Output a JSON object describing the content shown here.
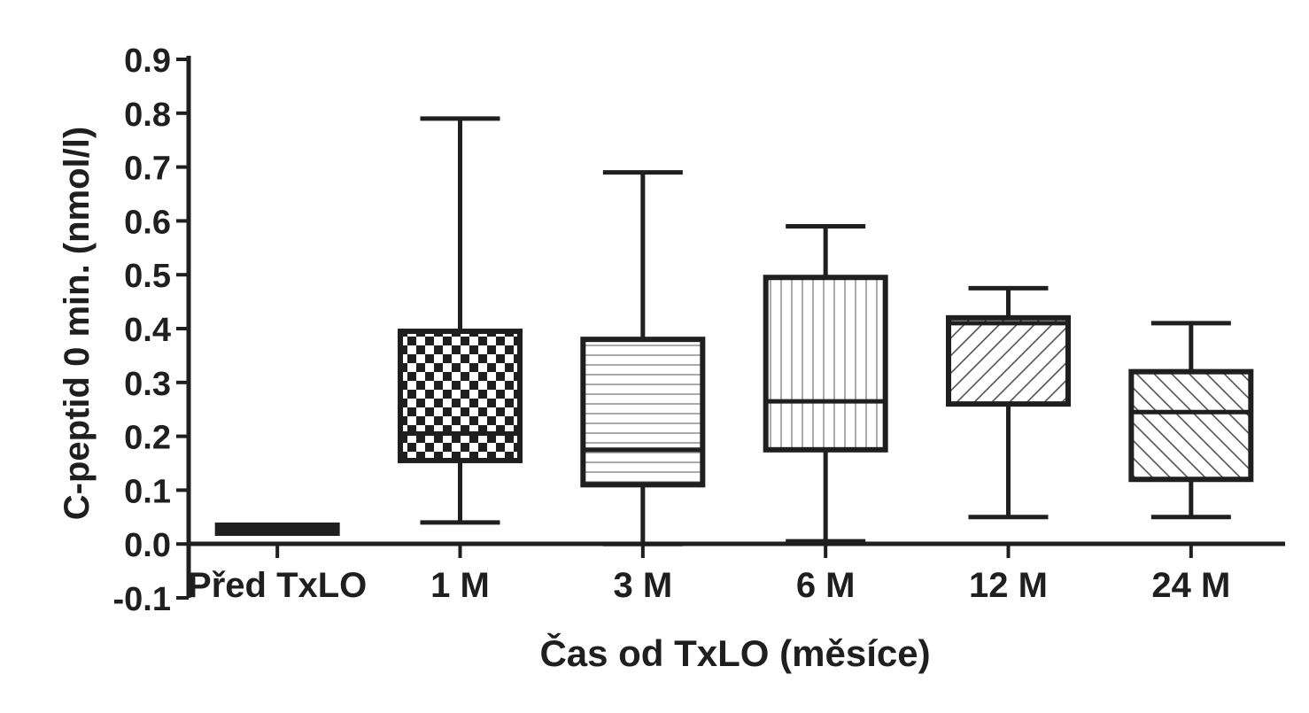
{
  "chart_data": {
    "type": "box",
    "title": "",
    "xlabel": "Čas od TxLO (měsíce)",
    "ylabel": "C-peptid 0 min. (nmol/l)",
    "ylim": [
      -0.1,
      0.9
    ],
    "yticks": [
      0.9,
      0.8,
      0.7,
      0.6,
      0.5,
      0.4,
      0.3,
      0.2,
      0.1,
      0.0,
      -0.1
    ],
    "ytick_labels": [
      "0.9",
      "0.8",
      "0.7",
      "0.6",
      "0.5",
      "0.4",
      "0.3",
      "0.2",
      "0.1",
      "0.0",
      "-0.1"
    ],
    "grid": false,
    "legend": "none",
    "categories": [
      "Před TxLO",
      "1 M",
      "3 M",
      "6 M",
      "12 M",
      "24 M"
    ],
    "boxes": [
      {
        "min": 0.02,
        "q1": 0.02,
        "median": 0.025,
        "q3": 0.035,
        "max": 0.035,
        "pattern": "solid-dark"
      },
      {
        "min": 0.04,
        "q1": 0.155,
        "median": 0.205,
        "q3": 0.395,
        "max": 0.79,
        "pattern": "checker"
      },
      {
        "min": 0.0,
        "q1": 0.11,
        "median": 0.175,
        "q3": 0.38,
        "max": 0.69,
        "pattern": "horizontal-lines"
      },
      {
        "min": 0.005,
        "q1": 0.175,
        "median": 0.265,
        "q3": 0.495,
        "max": 0.59,
        "pattern": "vertical-lines"
      },
      {
        "min": 0.05,
        "q1": 0.26,
        "median": 0.41,
        "q3": 0.42,
        "max": 0.475,
        "pattern": "diagonal-up"
      },
      {
        "min": 0.05,
        "q1": 0.12,
        "median": 0.245,
        "q3": 0.32,
        "max": 0.41,
        "pattern": "diagonal-down"
      }
    ],
    "colors": {
      "ink": "#1f1f1f",
      "fill": "#ffffff"
    }
  }
}
